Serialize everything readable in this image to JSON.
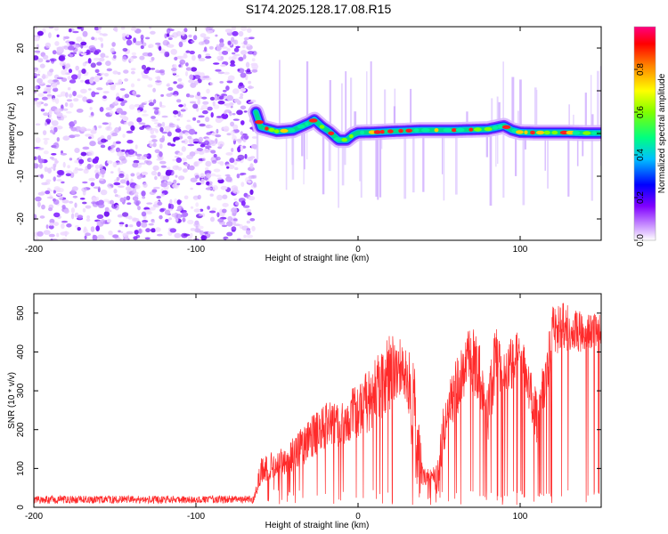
{
  "title": "S174.2025.128.17.08.R15",
  "chart_data": [
    {
      "type": "heatmap",
      "title": "S174.2025.128.17.08.R15",
      "xlabel": "Height of straight line (km)",
      "ylabel": "Frequency (Hz)",
      "xlim": [
        -200,
        150
      ],
      "ylim": [
        -25,
        25
      ],
      "xticks": [
        -200,
        -100,
        0,
        100
      ],
      "yticks": [
        -20,
        -10,
        0,
        10,
        20
      ],
      "colorbar": {
        "label": "Normalized spectral amplitude",
        "range": [
          0,
          1
        ],
        "ticks": [
          "0.0",
          "0.2",
          "0.4",
          "0.6",
          "0.8"
        ],
        "colors": [
          "#ffffff",
          "#c080ff",
          "#8000ff",
          "#0000ff",
          "#00c0ff",
          "#00ff80",
          "#80ff00",
          "#ffff00",
          "#ff8000",
          "#ff0000",
          "#ff0080"
        ]
      },
      "noise_region_x": [
        -200,
        -63
      ],
      "ridge": {
        "x": [
          -63,
          -60,
          -50,
          -40,
          -30,
          -27,
          -22,
          -18,
          -12,
          -7,
          -3,
          0,
          10,
          20,
          40,
          60,
          80,
          90,
          95,
          100,
          110,
          120,
          130,
          140,
          150
        ],
        "freq": [
          5,
          1.5,
          0.5,
          0.8,
          2.5,
          3.2,
          1.5,
          0.5,
          -1.5,
          -1.5,
          -0.3,
          0.2,
          0.3,
          0.5,
          0.8,
          0.8,
          1.0,
          1.8,
          0.8,
          0.3,
          0.2,
          0.2,
          0.2,
          0.1,
          0.1
        ]
      }
    },
    {
      "type": "line",
      "xlabel": "Height of straight line (km)",
      "ylabel": "SNR (10 * v/v)",
      "xlim": [
        -200,
        150
      ],
      "ylim": [
        0,
        550
      ],
      "xticks": [
        -200,
        -100,
        0,
        100
      ],
      "yticks": [
        0,
        100,
        200,
        300,
        400,
        500
      ],
      "color": "#ff2a2a",
      "envelope": {
        "x": [
          -200,
          -64,
          -60,
          -50,
          -40,
          -30,
          -20,
          -10,
          0,
          10,
          18,
          25,
          30,
          35,
          40,
          45,
          50,
          52,
          55,
          60,
          65,
          70,
          75,
          80,
          85,
          90,
          95,
          100,
          105,
          110,
          115,
          120,
          125,
          130,
          140,
          150
        ],
        "upper": [
          30,
          30,
          130,
          150,
          180,
          230,
          270,
          280,
          320,
          380,
          440,
          470,
          420,
          360,
          110,
          100,
          130,
          270,
          300,
          380,
          420,
          480,
          420,
          320,
          470,
          420,
          440,
          460,
          380,
          310,
          380,
          520,
          530,
          520,
          500,
          510
        ],
        "lower": [
          10,
          10,
          60,
          80,
          90,
          120,
          150,
          150,
          180,
          200,
          240,
          290,
          260,
          60,
          50,
          70,
          20,
          100,
          200,
          220,
          280,
          300,
          260,
          150,
          300,
          290,
          300,
          380,
          260,
          160,
          250,
          380,
          400,
          400,
          400,
          420
        ]
      }
    }
  ]
}
